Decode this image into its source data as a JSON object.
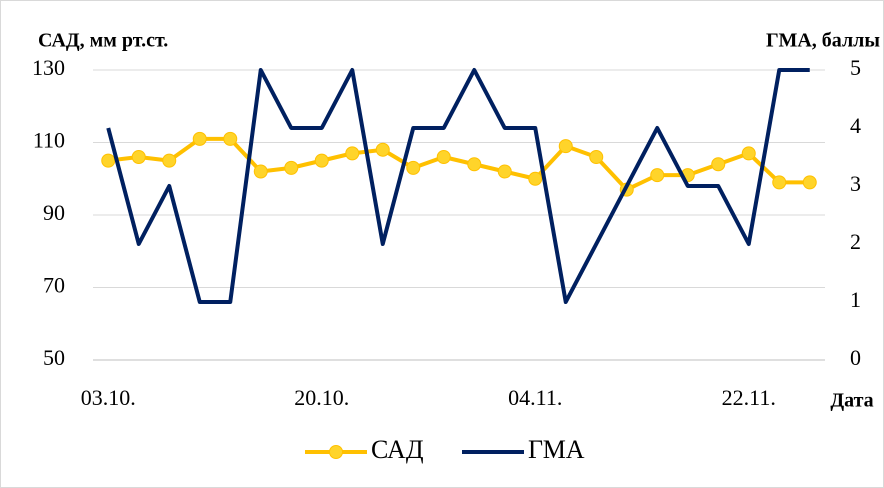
{
  "chart_data": {
    "type": "line",
    "y_label": "САД, мм рт.ст.",
    "y2_label": "ГМА, баллы",
    "x_label": "Дата",
    "categories": [
      "03.10.",
      null,
      null,
      null,
      null,
      null,
      null,
      "20.10.",
      null,
      null,
      null,
      null,
      null,
      null,
      "04.11.",
      null,
      null,
      null,
      null,
      null,
      null,
      "22.11.",
      null,
      null
    ],
    "series": [
      {
        "name": "САД",
        "color": "#ffc000",
        "marker_color": "#ffd42a",
        "values": [
          105,
          106,
          105,
          111,
          111,
          102,
          103,
          105,
          107,
          108,
          103,
          106,
          104,
          102,
          100,
          109,
          106,
          97,
          101,
          101,
          104,
          107,
          99,
          99
        ]
      },
      {
        "name": "ГМА",
        "color": "#002060",
        "axis": "y2",
        "values": [
          4,
          2,
          3,
          1,
          1,
          5,
          4,
          4,
          5,
          2,
          4,
          4,
          5,
          4,
          4,
          1,
          2,
          3,
          4,
          3,
          3,
          2,
          5,
          5
        ]
      }
    ],
    "ylim": [
      50,
      130
    ],
    "yticks": [
      50,
      70,
      90,
      110,
      130
    ],
    "y2lim": [
      0,
      5
    ],
    "y2ticks": [
      0,
      1,
      2,
      3,
      4,
      5
    ],
    "grid": true
  }
}
